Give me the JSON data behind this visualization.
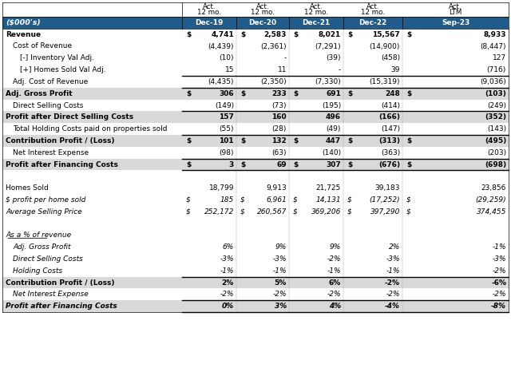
{
  "header_bg": "#1F5C8B",
  "bold_row_bg": "#D9D9D9",
  "title_text": "($000's)",
  "col_headers_top": [
    "Act.",
    "Act.",
    "Act.",
    "Act.",
    "Act."
  ],
  "col_headers_mid": [
    "12 mo.",
    "12 mo.",
    "12 mo.",
    "12 mo.",
    "LTM"
  ],
  "col_headers_bot": [
    "Dec-19",
    "Dec-20",
    "Dec-21",
    "Dec-22",
    "Sep-23"
  ],
  "rows": [
    {
      "label": "Revenue",
      "indent": 0,
      "bold": true,
      "dollar": true,
      "italic": false,
      "underline": false,
      "border_top": false,
      "border_bot": false,
      "bg": "white",
      "values": [
        "4,741",
        "2,583",
        "8,021",
        "15,567",
        "8,933"
      ]
    },
    {
      "label": "Cost of Revenue",
      "indent": 1,
      "bold": false,
      "dollar": false,
      "italic": false,
      "underline": false,
      "border_top": false,
      "border_bot": false,
      "bg": "white",
      "values": [
        "(4,439)",
        "(2,361)",
        "(7,291)",
        "(14,900)",
        "(8,447)"
      ]
    },
    {
      "label": "[-] Inventory Val Adj.",
      "indent": 2,
      "bold": false,
      "dollar": false,
      "italic": false,
      "underline": false,
      "border_top": false,
      "border_bot": false,
      "bg": "white",
      "values": [
        "(10)",
        "-",
        "(39)",
        "(458)",
        "127"
      ]
    },
    {
      "label": "[+] Homes Sold Val Adj.",
      "indent": 2,
      "bold": false,
      "dollar": false,
      "italic": false,
      "underline": false,
      "border_top": false,
      "border_bot": true,
      "bg": "white",
      "values": [
        "15",
        "11",
        "-",
        "39",
        "(716)"
      ]
    },
    {
      "label": "Adj. Cost of Revenue",
      "indent": 1,
      "bold": false,
      "dollar": false,
      "italic": false,
      "underline": false,
      "border_top": false,
      "border_bot": false,
      "bg": "white",
      "values": [
        "(4,435)",
        "(2,350)",
        "(7,330)",
        "(15,319)",
        "(9,036)"
      ]
    },
    {
      "label": "Adj. Gross Profit",
      "indent": 0,
      "bold": true,
      "dollar": true,
      "italic": false,
      "underline": false,
      "border_top": true,
      "border_bot": false,
      "bg": "bold",
      "values": [
        "306",
        "233",
        "691",
        "248",
        "(103)"
      ]
    },
    {
      "label": "Direct Selling Costs",
      "indent": 1,
      "bold": false,
      "dollar": false,
      "italic": false,
      "underline": false,
      "border_top": false,
      "border_bot": false,
      "bg": "white",
      "values": [
        "(149)",
        "(73)",
        "(195)",
        "(414)",
        "(249)"
      ]
    },
    {
      "label": "Profit after Direct Selling Costs",
      "indent": 0,
      "bold": true,
      "dollar": false,
      "italic": false,
      "underline": false,
      "border_top": true,
      "border_bot": false,
      "bg": "bold",
      "values": [
        "157",
        "160",
        "496",
        "(166)",
        "(352)"
      ]
    },
    {
      "label": "Total Holding Costs paid on properties sold",
      "indent": 1,
      "bold": false,
      "dollar": false,
      "italic": false,
      "underline": false,
      "border_top": false,
      "border_bot": false,
      "bg": "white",
      "values": [
        "(55)",
        "(28)",
        "(49)",
        "(147)",
        "(143)"
      ]
    },
    {
      "label": "Contribution Profit / (Loss)",
      "indent": 0,
      "bold": true,
      "dollar": true,
      "italic": false,
      "underline": false,
      "border_top": true,
      "border_bot": false,
      "bg": "bold",
      "values": [
        "101",
        "132",
        "447",
        "(313)",
        "(495)"
      ]
    },
    {
      "label": "Net Interest Expense",
      "indent": 1,
      "bold": false,
      "dollar": false,
      "italic": false,
      "underline": false,
      "border_top": false,
      "border_bot": false,
      "bg": "white",
      "values": [
        "(98)",
        "(63)",
        "(140)",
        "(363)",
        "(203)"
      ]
    },
    {
      "label": "Profit after Financing Costs",
      "indent": 0,
      "bold": true,
      "dollar": true,
      "italic": false,
      "underline": false,
      "border_top": true,
      "border_bot": true,
      "bg": "bold",
      "values": [
        "3",
        "69",
        "307",
        "(676)",
        "(698)"
      ]
    },
    {
      "label": "",
      "indent": 0,
      "bold": false,
      "dollar": false,
      "italic": false,
      "underline": false,
      "border_top": false,
      "border_bot": false,
      "bg": "white",
      "values": [
        "",
        "",
        "",
        "",
        ""
      ]
    },
    {
      "label": "Homes Sold",
      "indent": 0,
      "bold": false,
      "dollar": false,
      "italic": false,
      "underline": false,
      "border_top": false,
      "border_bot": false,
      "bg": "white",
      "values": [
        "18,799",
        "9,913",
        "21,725",
        "39,183",
        "23,856"
      ]
    },
    {
      "label": "$ profit per home sold",
      "indent": 0,
      "bold": false,
      "dollar": true,
      "italic": true,
      "underline": false,
      "border_top": false,
      "border_bot": false,
      "bg": "white",
      "values": [
        "185",
        "6,961",
        "14,131",
        "(17,252)",
        "(29,259)"
      ]
    },
    {
      "label": "Average Selling Price",
      "indent": 0,
      "bold": false,
      "dollar": true,
      "italic": true,
      "underline": false,
      "border_top": false,
      "border_bot": false,
      "bg": "white",
      "values": [
        "252,172",
        "260,567",
        "369,206",
        "397,290",
        "374,455"
      ]
    },
    {
      "label": "",
      "indent": 0,
      "bold": false,
      "dollar": false,
      "italic": false,
      "underline": false,
      "border_top": false,
      "border_bot": false,
      "bg": "white",
      "values": [
        "",
        "",
        "",
        "",
        ""
      ]
    },
    {
      "label": "As a % of revenue",
      "indent": 0,
      "bold": false,
      "dollar": false,
      "italic": true,
      "underline": true,
      "border_top": false,
      "border_bot": false,
      "bg": "white",
      "values": [
        "",
        "",
        "",
        "",
        ""
      ]
    },
    {
      "label": "Adj. Gross Profit",
      "indent": 1,
      "bold": false,
      "dollar": false,
      "italic": true,
      "underline": false,
      "border_top": false,
      "border_bot": false,
      "bg": "white",
      "values": [
        "6%",
        "9%",
        "9%",
        "2%",
        "-1%"
      ]
    },
    {
      "label": "Direct Selling Costs",
      "indent": 1,
      "bold": false,
      "dollar": false,
      "italic": true,
      "underline": false,
      "border_top": false,
      "border_bot": false,
      "bg": "white",
      "values": [
        "-3%",
        "-3%",
        "-2%",
        "-3%",
        "-3%"
      ]
    },
    {
      "label": "Holding Costs",
      "indent": 1,
      "bold": false,
      "dollar": false,
      "italic": true,
      "underline": false,
      "border_top": false,
      "border_bot": false,
      "bg": "white",
      "values": [
        "-1%",
        "-1%",
        "-1%",
        "-1%",
        "-2%"
      ]
    },
    {
      "label": "Contribution Profit / (Loss)",
      "indent": 0,
      "bold": true,
      "dollar": false,
      "italic": false,
      "underline": false,
      "border_top": true,
      "border_bot": false,
      "bg": "bold",
      "values": [
        "2%",
        "5%",
        "6%",
        "-2%",
        "-6%"
      ]
    },
    {
      "label": "Net Interest Expense",
      "indent": 1,
      "bold": false,
      "dollar": false,
      "italic": true,
      "underline": false,
      "border_top": false,
      "border_bot": false,
      "bg": "white",
      "values": [
        "-2%",
        "-2%",
        "-2%",
        "-2%",
        "-2%"
      ]
    },
    {
      "label": "Profit after Financing Costs",
      "indent": 0,
      "bold": true,
      "dollar": false,
      "italic": true,
      "underline": false,
      "border_top": true,
      "border_bot": true,
      "bg": "bold",
      "values": [
        "0%",
        "3%",
        "4%",
        "-4%",
        "-8%"
      ]
    }
  ]
}
